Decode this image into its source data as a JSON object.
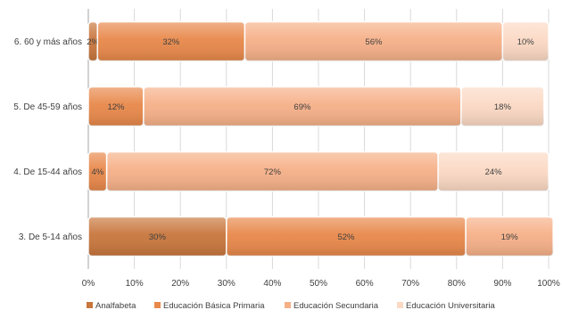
{
  "chart_data": {
    "type": "bar",
    "orientation": "horizontal",
    "stacked": "percent",
    "categories": [
      "6. 60 y más años",
      "5. De 45-59 años",
      "4. De 15-44 años",
      "3. De 5-14 años"
    ],
    "series": [
      {
        "name": "Analfabeta",
        "color": "#c8763c",
        "values": [
          2,
          0,
          0,
          30
        ],
        "labels": [
          "2%",
          "",
          "",
          "30%"
        ]
      },
      {
        "name": "Educación Básica Primaria",
        "color": "#e8884a",
        "values": [
          32,
          12,
          4,
          52
        ],
        "labels": [
          "32%",
          "12%",
          "4%",
          "52%"
        ]
      },
      {
        "name": "Educación Secundaria",
        "color": "#f6b088",
        "values": [
          56,
          69,
          72,
          19
        ],
        "labels": [
          "56%",
          "69%",
          "72%",
          "19%"
        ]
      },
      {
        "name": "Educación Universitaria",
        "color": "#fbd9c4",
        "values": [
          10,
          18,
          24,
          0
        ],
        "labels": [
          "10%",
          "18%",
          "24%",
          ""
        ]
      }
    ],
    "xlim": [
      0,
      100
    ],
    "xticks": [
      "0%",
      "10%",
      "20%",
      "30%",
      "40%",
      "50%",
      "60%",
      "70%",
      "80%",
      "90%",
      "100%"
    ],
    "grid": true,
    "legend": "bottom"
  }
}
